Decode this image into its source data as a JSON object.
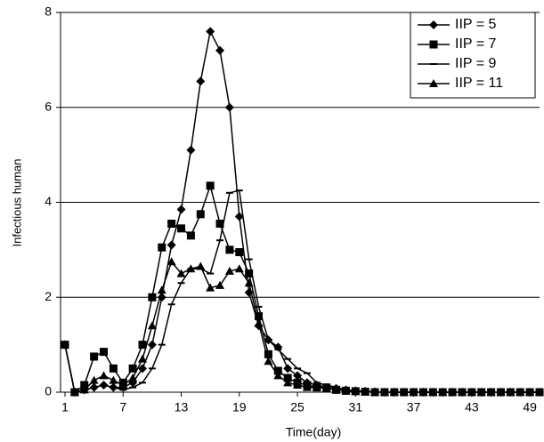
{
  "chart_data": {
    "type": "line",
    "x_label": "Time(day)",
    "y_label": "Infectious human",
    "x": [
      1,
      2,
      3,
      4,
      5,
      6,
      7,
      8,
      9,
      10,
      11,
      12,
      13,
      14,
      15,
      16,
      17,
      18,
      19,
      20,
      21,
      22,
      23,
      24,
      25,
      26,
      27,
      28,
      29,
      30,
      31,
      32,
      33,
      34,
      35,
      36,
      37,
      38,
      39,
      40,
      41,
      42,
      43,
      44,
      45,
      46,
      47,
      48,
      49,
      50
    ],
    "series": [
      {
        "name": "IIP = 5",
        "color": "#000000",
        "marker": "diamond",
        "values": [
          1,
          0,
          0.05,
          0.1,
          0.15,
          0.1,
          0.1,
          0.2,
          0.5,
          1.0,
          2.0,
          3.1,
          3.85,
          5.1,
          6.55,
          7.6,
          7.2,
          6.0,
          3.7,
          2.1,
          1.4,
          1.1,
          0.95,
          0.5,
          0.35,
          0.2,
          0.15,
          0.1,
          0.08,
          0.05,
          0.03,
          0.02,
          0.01,
          0,
          0,
          0,
          0,
          0,
          0,
          0,
          0,
          0,
          0,
          0,
          0,
          0,
          0,
          0,
          0,
          0
        ]
      },
      {
        "name": "IIP = 7",
        "color": "#000000",
        "marker": "square",
        "values": [
          1,
          0,
          0.15,
          0.75,
          0.85,
          0.5,
          0.2,
          0.5,
          1.0,
          2.0,
          3.05,
          3.55,
          3.45,
          3.3,
          3.75,
          4.35,
          3.55,
          3.0,
          2.95,
          2.5,
          1.6,
          0.8,
          0.45,
          0.3,
          0.2,
          0.15,
          0.1,
          0.1,
          0.05,
          0.03,
          0.02,
          0.01,
          0,
          0,
          0,
          0,
          0,
          0,
          0,
          0,
          0,
          0,
          0,
          0,
          0,
          0,
          0,
          0,
          0,
          0
        ]
      },
      {
        "name": "IIP = 9",
        "color": "#000000",
        "marker": "dash",
        "values": [
          1,
          0,
          0.05,
          0.1,
          0.15,
          0.1,
          0.05,
          0.1,
          0.2,
          0.5,
          1.0,
          1.85,
          2.3,
          2.6,
          2.6,
          2.5,
          3.2,
          4.2,
          4.25,
          2.8,
          1.8,
          1.1,
          0.9,
          0.7,
          0.5,
          0.4,
          0.2,
          0.15,
          0.1,
          0.05,
          0.03,
          0.02,
          0,
          0,
          0,
          0,
          0,
          0,
          0,
          0,
          0,
          0,
          0,
          0,
          0,
          0,
          0,
          0,
          0,
          0
        ]
      },
      {
        "name": "IIP = 11",
        "color": "#000000",
        "marker": "triangle",
        "values": [
          1,
          0,
          0.05,
          0.25,
          0.35,
          0.25,
          0.15,
          0.3,
          0.7,
          1.4,
          2.15,
          2.75,
          2.5,
          2.6,
          2.65,
          2.2,
          2.25,
          2.55,
          2.6,
          2.3,
          1.45,
          0.65,
          0.35,
          0.2,
          0.15,
          0.1,
          0.1,
          0.08,
          0.05,
          0.03,
          0.02,
          0.01,
          0,
          0,
          0,
          0,
          0,
          0,
          0,
          0,
          0,
          0,
          0,
          0,
          0,
          0,
          0,
          0,
          0,
          0
        ]
      }
    ],
    "xlim": [
      1,
      50
    ],
    "xticks": [
      1,
      7,
      13,
      19,
      25,
      31,
      37,
      43,
      49
    ],
    "ylim": [
      0,
      8
    ],
    "yticks": [
      0,
      2,
      4,
      6,
      8
    ],
    "grid": true,
    "legend": "top-right"
  }
}
